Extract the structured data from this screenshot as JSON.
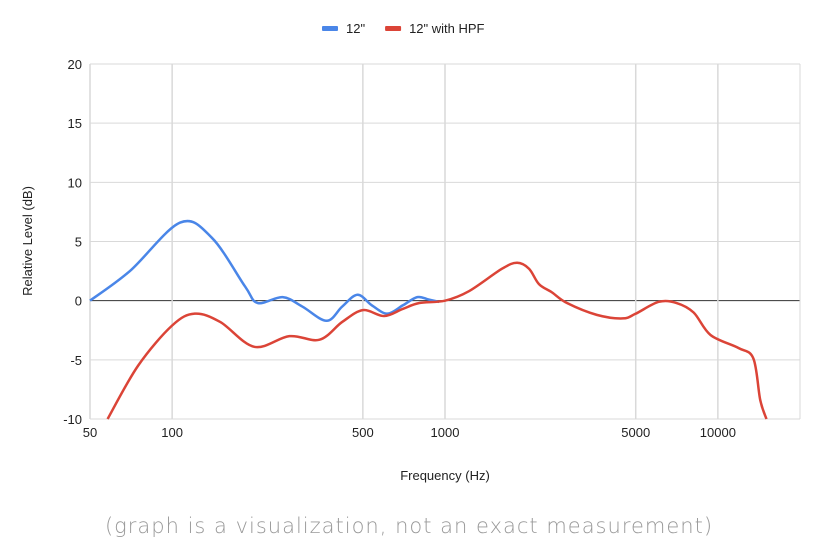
{
  "chart_data": {
    "type": "line",
    "title": "",
    "xlabel": "Frequency (Hz)",
    "ylabel": "Relative Level (dB)",
    "xscale": "log",
    "xlim": [
      50,
      20000
    ],
    "ylim": [
      -10,
      20
    ],
    "xticks": [
      50,
      100,
      500,
      1000,
      5000,
      10000
    ],
    "xtick_labels": [
      "50",
      "100",
      "500",
      "1000",
      "5000",
      "10000"
    ],
    "yticks": [
      -10,
      -5,
      0,
      5,
      10,
      15,
      20
    ],
    "ytick_labels": [
      "-10",
      "-5",
      "0",
      "5",
      "10",
      "15",
      "20"
    ],
    "grid": true,
    "legend": "top",
    "series": [
      {
        "name": "12\"",
        "color": "#4a86e8",
        "x": [
          50,
          70,
          107,
          140,
          185,
          206,
          254,
          300,
          368,
          420,
          478,
          540,
          615,
          700,
          791,
          870,
          952
        ],
        "y": [
          0,
          2.5,
          6.6,
          5.3,
          1.2,
          -0.2,
          0.3,
          -0.5,
          -1.7,
          -0.5,
          0.5,
          -0.4,
          -1.1,
          -0.4,
          0.3,
          0.1,
          -0.1
        ]
      },
      {
        "name": "12\" with HPF",
        "color": "#db4437",
        "x": [
          58,
          75,
          100,
          121,
          150,
          200,
          269,
          347,
          420,
          500,
          598,
          700,
          805,
          1000,
          1224,
          1618,
          1837,
          2032,
          2210,
          2466,
          2800,
          3600,
          4476,
          5000,
          6070,
          7060,
          8150,
          9400,
          11900,
          13500,
          14300,
          15070
        ],
        "y": [
          -10,
          -5.5,
          -2.1,
          -1.1,
          -1.8,
          -3.9,
          -3.0,
          -3.3,
          -1.8,
          -0.8,
          -1.3,
          -0.7,
          -0.2,
          0,
          0.8,
          2.7,
          3.2,
          2.7,
          1.4,
          0.7,
          -0.2,
          -1.2,
          -1.5,
          -1.1,
          -0.1,
          -0.2,
          -1.0,
          -2.9,
          -4.0,
          -4.9,
          -8.4,
          -10
        ]
      }
    ]
  },
  "footnote": "(graph is a visualization, not an exact measurement)"
}
